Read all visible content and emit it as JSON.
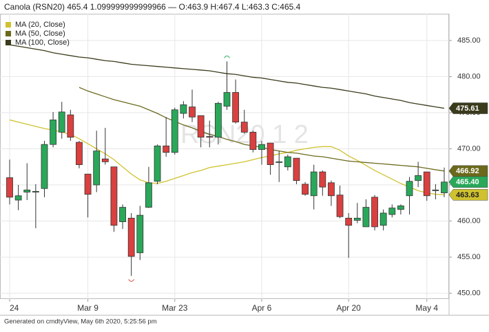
{
  "chart_data": {
    "type": "candlestick",
    "title": "Canola (RSN20) 465.4 1.099999999999966 — O:463.9 H:467.4 L:463.3 C:465.4",
    "watermark": "RSN20 1 2",
    "footer": "Generated on cmdtyView, May 6th 2020, 5:25:56 pm",
    "categories": [
      "24",
      null,
      null,
      null,
      null,
      null,
      null,
      null,
      null,
      "Mar 9",
      null,
      null,
      null,
      null,
      null,
      null,
      null,
      null,
      null,
      "Mar 23",
      null,
      null,
      null,
      null,
      null,
      null,
      null,
      null,
      null,
      "Apr 6",
      null,
      null,
      null,
      null,
      null,
      null,
      null,
      null,
      null,
      "Apr 20",
      null,
      null,
      null,
      null,
      null,
      null,
      null,
      null,
      "May 4",
      null,
      null
    ],
    "candles": {
      "open": [
        466.0,
        462.9,
        464.0,
        464.0,
        464.5,
        470.6,
        472.3,
        474.7,
        470.9,
        466.5,
        465.0,
        468.6,
        467.5,
        459.9,
        460.4,
        455.6,
        461.9,
        465.5,
        470.4,
        469.5,
        474.9,
        475.8,
        474.6,
        471.7,
        471.6,
        475.9,
        477.8,
        473.7,
        472.3,
        469.9,
        470.8,
        468.2,
        467.5,
        468.7,
        465.1,
        463.5,
        466.8,
        465.3,
        463.6,
        460.4,
        460.1,
        459.2,
        463.3,
        459.4,
        460.9,
        461.6,
        463.5,
        465.6,
        466.8,
        464.3,
        463.9
      ],
      "high": [
        468.5,
        465.0,
        468.0,
        465.1,
        471.1,
        475.1,
        476.5,
        475.4,
        471.1,
        466.5,
        472.5,
        472.9,
        467.5,
        462.3,
        461.1,
        462.1,
        467.5,
        470.6,
        474.4,
        475.7,
        476.6,
        478.2,
        474.6,
        473.9,
        476.5,
        482.1,
        479.6,
        475.4,
        472.5,
        471.1,
        470.8,
        469.7,
        469.2,
        468.7,
        465.4,
        467.8,
        467.0,
        465.6,
        464.9,
        461.1,
        462.5,
        463.0,
        463.6,
        461.6,
        462.3,
        462.3,
        466.1,
        468.2,
        466.8,
        465.1,
        467.4
      ],
      "low": [
        462.3,
        461.5,
        462.9,
        459.0,
        463.3,
        470.2,
        471.4,
        471.1,
        467.3,
        460.5,
        464.0,
        467.8,
        458.5,
        458.9,
        452.4,
        454.6,
        461.8,
        465.1,
        468.9,
        469.2,
        474.2,
        473.7,
        470.2,
        470.2,
        470.6,
        475.4,
        473.5,
        472.1,
        469.5,
        467.8,
        466.4,
        465.4,
        467.0,
        465.1,
        463.5,
        461.6,
        463.5,
        462.1,
        460.4,
        454.9,
        459.7,
        459.2,
        458.7,
        458.7,
        460.5,
        460.9,
        460.9,
        464.7,
        462.8,
        463.0,
        463.3
      ],
      "close": [
        463.3,
        463.5,
        464.3,
        464.1,
        470.6,
        474.0,
        475.1,
        471.6,
        467.8,
        463.7,
        469.7,
        468.2,
        459.4,
        461.9,
        455.1,
        460.8,
        465.3,
        470.4,
        469.5,
        475.4,
        476.1,
        474.4,
        471.6,
        471.6,
        476.3,
        477.8,
        473.7,
        472.3,
        469.9,
        470.6,
        467.8,
        468.2,
        468.9,
        465.6,
        463.7,
        466.8,
        464.7,
        463.5,
        460.6,
        459.4,
        460.4,
        461.9,
        459.2,
        461.1,
        461.8,
        462.1,
        465.5,
        466.3,
        463.5,
        464.3,
        465.4
      ],
      "up_color": "#2aa85a",
      "down_color": "#d9403f",
      "close_label": "465.40"
    },
    "series": [
      {
        "name": "MA (20, Close)",
        "color": "#cfc22e",
        "last_label": "463.63",
        "values": [
          474.0,
          473.7,
          473.4,
          473.1,
          472.8,
          472.6,
          472.3,
          472.0,
          471.4,
          470.7,
          470.0,
          469.3,
          468.5,
          467.5,
          466.5,
          465.7,
          465.3,
          465.2,
          465.5,
          465.9,
          466.3,
          466.7,
          467.0,
          467.4,
          467.6,
          467.8,
          468.0,
          468.2,
          468.5,
          468.8,
          469.0,
          469.3,
          469.5,
          469.8,
          470.0,
          470.2,
          470.3,
          470.3,
          469.8,
          469.0,
          468.4,
          467.7,
          467.0,
          466.4,
          465.8,
          465.2,
          464.7,
          464.2,
          463.9,
          463.7,
          463.63
        ]
      },
      {
        "name": "MA (50, Close)",
        "color": "#6b6a1c",
        "last_label": "466.92",
        "values": [
          null,
          null,
          null,
          null,
          null,
          null,
          null,
          null,
          478.5,
          478.0,
          477.6,
          477.2,
          476.8,
          476.5,
          476.2,
          475.9,
          475.4,
          474.9,
          474.3,
          473.8,
          473.3,
          472.9,
          472.4,
          472.0,
          471.7,
          471.3,
          471.0,
          470.6,
          470.4,
          470.2,
          469.9,
          469.7,
          469.5,
          469.4,
          469.2,
          469.0,
          468.9,
          468.7,
          468.5,
          468.3,
          468.2,
          468.1,
          468.0,
          467.9,
          467.8,
          467.7,
          467.6,
          467.5,
          467.3,
          467.1,
          466.92
        ]
      },
      {
        "name": "MA (100, Close)",
        "color": "#3a3a1c",
        "last_label": "475.61",
        "values": [
          484.4,
          484.2,
          484.0,
          483.8,
          483.6,
          483.3,
          483.1,
          482.9,
          482.7,
          482.6,
          482.4,
          482.2,
          482.1,
          481.9,
          481.7,
          481.6,
          481.5,
          481.4,
          481.3,
          481.2,
          481.1,
          481.0,
          480.9,
          480.8,
          480.6,
          480.4,
          480.3,
          480.1,
          479.9,
          479.8,
          479.6,
          479.4,
          479.2,
          479.1,
          478.9,
          478.7,
          478.5,
          478.4,
          478.2,
          478.0,
          477.8,
          477.6,
          477.3,
          477.1,
          476.9,
          476.7,
          476.4,
          476.2,
          476.0,
          475.8,
          475.61
        ]
      }
    ],
    "ylim": [
      449.2,
      488.7
    ],
    "yticks": [
      {
        "value": 450,
        "label": "450.00"
      },
      {
        "value": 455,
        "label": "455.00"
      },
      {
        "value": 460,
        "label": "460.00"
      },
      {
        "value": 465,
        "label": "465.00"
      },
      {
        "value": 470,
        "label": "470.00"
      },
      {
        "value": 475,
        "label": "475.00"
      },
      {
        "value": 480,
        "label": "480.00"
      },
      {
        "value": 485,
        "label": "485.00"
      }
    ],
    "grid": true,
    "legend": "top-left"
  }
}
